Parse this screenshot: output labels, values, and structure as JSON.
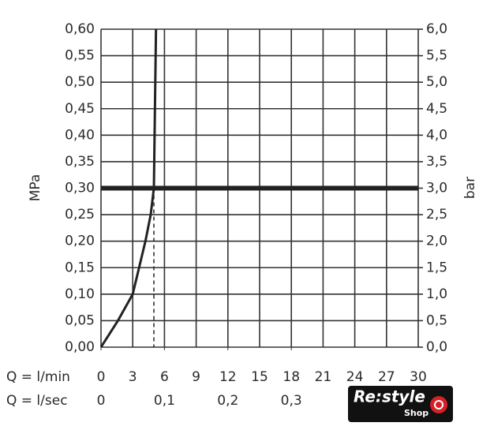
{
  "chart_data": {
    "type": "line",
    "y_label": "MPa",
    "y2_label": "bar",
    "x_label": "Q = l/min",
    "x2_label": "Q = l/sec",
    "x": [
      0,
      1.6,
      3.0,
      3.6,
      4.2,
      4.7,
      5.0,
      5.1,
      5.2
    ],
    "series": [
      {
        "color": "#222222",
        "values": [
          0,
          0.05,
          0.1,
          0.15,
          0.2,
          0.25,
          0.3,
          0.45,
          0.6
        ]
      }
    ],
    "xlim": [
      0,
      30
    ],
    "xticks": [
      0,
      3,
      6,
      9,
      12,
      15,
      18,
      21,
      24,
      27,
      30
    ],
    "x2lim": [
      0,
      0.5
    ],
    "x2ticks": [
      0,
      {
        "value": 0.1,
        "label": "0,1"
      },
      {
        "value": 0.2,
        "label": "0,2"
      },
      {
        "value": 0.3,
        "label": "0,3"
      }
    ],
    "ylim": [
      0,
      0.6
    ],
    "yticks": [
      {
        "value": 0,
        "label": "0,00"
      },
      {
        "value": 0.05,
        "label": "0,05"
      },
      {
        "value": 0.1,
        "label": "0,10"
      },
      {
        "value": 0.15,
        "label": "0,15"
      },
      {
        "value": 0.2,
        "label": "0,20"
      },
      {
        "value": 0.25,
        "label": "0,25"
      },
      {
        "value": 0.3,
        "label": "0,30"
      },
      {
        "value": 0.35,
        "label": "0,35"
      },
      {
        "value": 0.4,
        "label": "0,40"
      },
      {
        "value": 0.45,
        "label": "0,45"
      },
      {
        "value": 0.5,
        "label": "0,50"
      },
      {
        "value": 0.55,
        "label": "0,55"
      },
      {
        "value": 0.6,
        "label": "0,60"
      }
    ],
    "y2lim": [
      0,
      6
    ],
    "y2ticks": [
      {
        "value": 0,
        "label": "0,0"
      },
      {
        "value": 0.5,
        "label": "0,5"
      },
      {
        "value": 1,
        "label": "1,0"
      },
      {
        "value": 1.5,
        "label": "1,5"
      },
      {
        "value": 2,
        "label": "2,0"
      },
      {
        "value": 2.5,
        "label": "2,5"
      },
      {
        "value": 3,
        "label": "3,0"
      },
      {
        "value": 3.5,
        "label": "3,5"
      },
      {
        "value": 4,
        "label": "4,0"
      },
      {
        "value": 4.5,
        "label": "4,5"
      },
      {
        "value": 5,
        "label": "5,0"
      },
      {
        "value": 5.5,
        "label": "5,5"
      },
      {
        "value": 6,
        "label": "6,0"
      }
    ],
    "grid": true,
    "hline": 0.3,
    "vline": 5.0,
    "logo": {
      "text": "Re:style",
      "sub": "Shop"
    }
  }
}
